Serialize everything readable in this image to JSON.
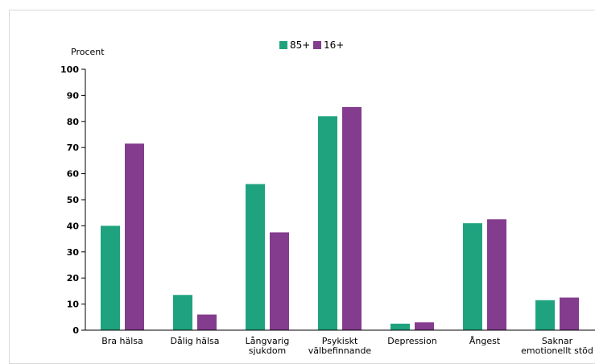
{
  "chart_data": {
    "type": "bar",
    "ylabel": "Procent",
    "ylim": [
      0,
      100
    ],
    "yticks": [
      0,
      10,
      20,
      30,
      40,
      50,
      60,
      70,
      80,
      90,
      100
    ],
    "grid": false,
    "legend_position": "top-center",
    "categories": [
      [
        "Bra hälsa"
      ],
      [
        "Dålig hälsa"
      ],
      [
        "Långvarig",
        "sjukdom"
      ],
      [
        "Psykiskt",
        "välbefinnande"
      ],
      [
        "Depression"
      ],
      [
        "Ångest"
      ],
      [
        "Saknar",
        "emotionellt stöd"
      ]
    ],
    "series": [
      {
        "name": "85+",
        "color": "#1fa37f",
        "values": [
          40,
          13.5,
          56,
          82,
          2.5,
          41,
          11.5
        ]
      },
      {
        "name": "16+",
        "color": "#843c8e",
        "values": [
          71.5,
          6,
          37.5,
          85.5,
          3,
          42.5,
          12.5
        ]
      }
    ]
  }
}
